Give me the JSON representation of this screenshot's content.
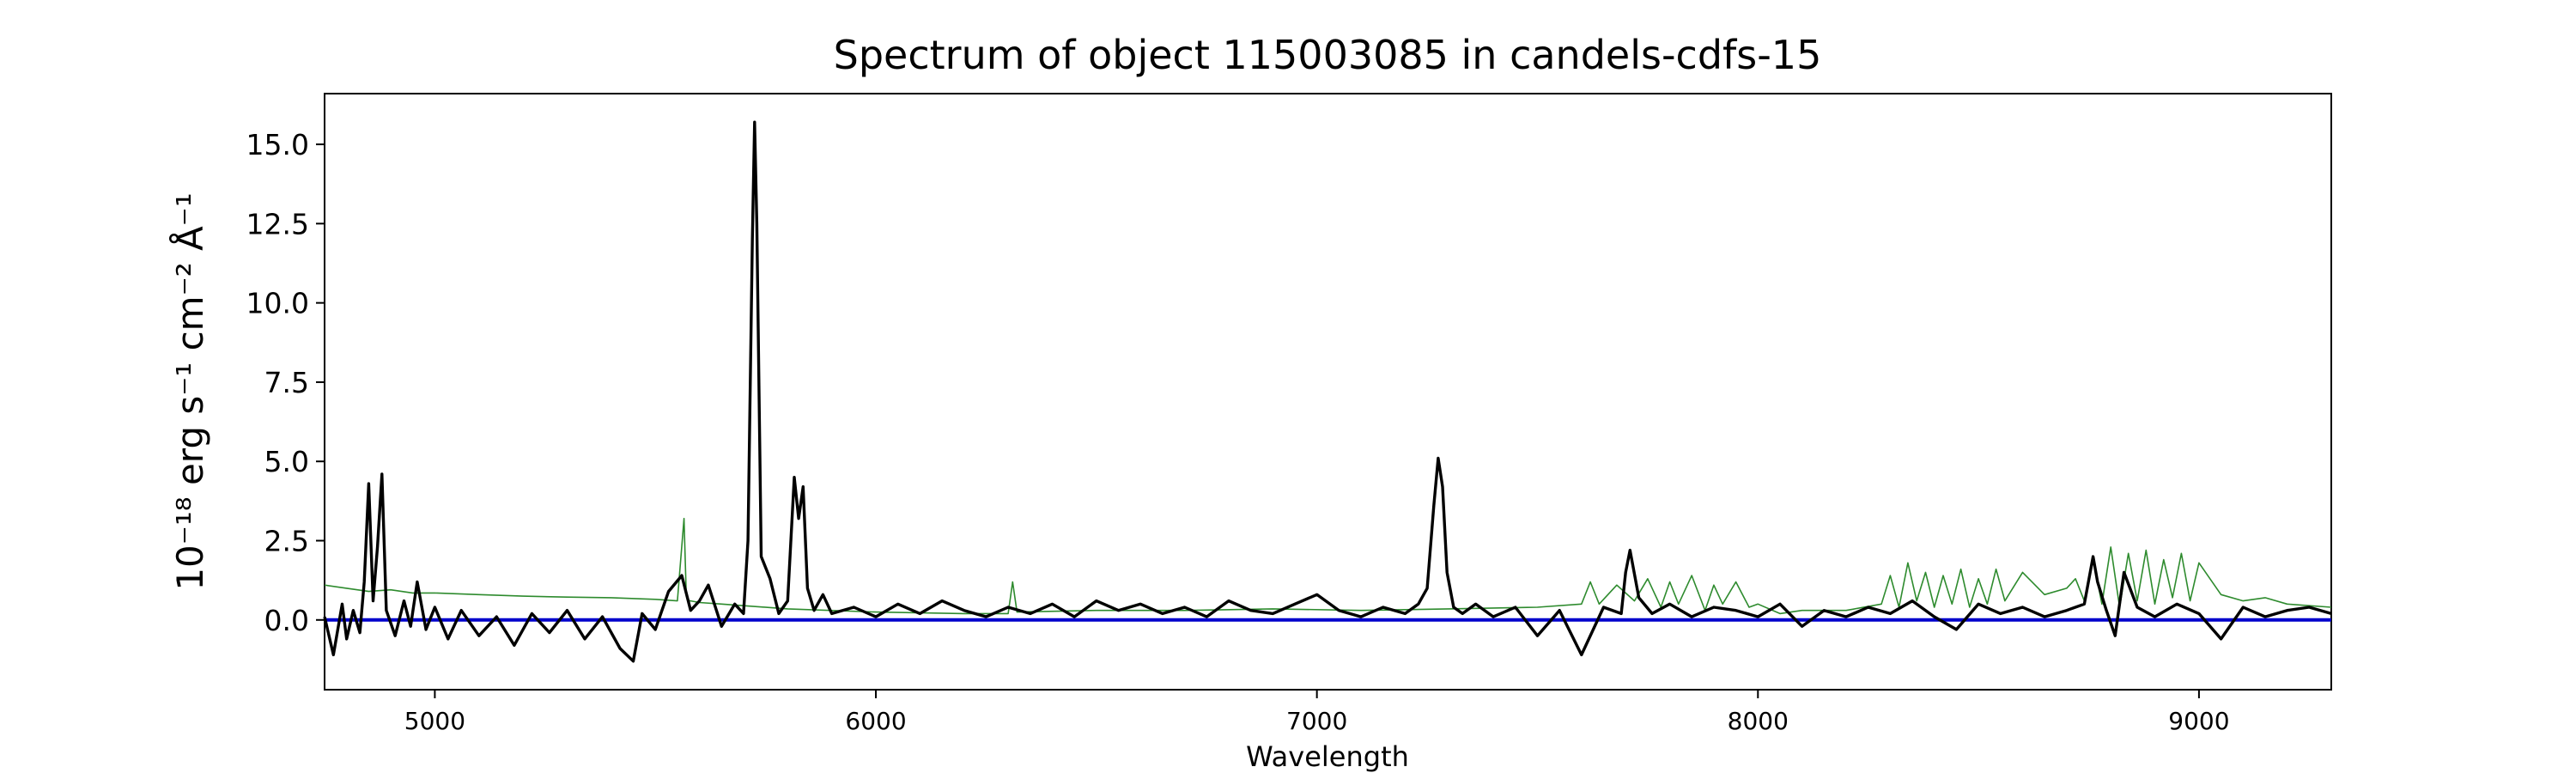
{
  "chart_data": {
    "type": "line",
    "title": "Spectrum of object 115003085 in candels-cdfs-15",
    "xlabel": "Wavelength",
    "ylabel": "10⁻¹⁸ erg s⁻¹ cm⁻² Å⁻¹",
    "xlim": [
      4750,
      9300
    ],
    "ylim": [
      -2.2,
      16.6
    ],
    "xticks": [
      5000,
      6000,
      7000,
      8000,
      9000
    ],
    "yticks": [
      0.0,
      2.5,
      5.0,
      7.5,
      10.0,
      12.5,
      15.0
    ],
    "ytick_labels": [
      "0.0",
      "2.5",
      "5.0",
      "7.5",
      "10.0",
      "12.5",
      "15.0"
    ],
    "colors": {
      "flux": "#000000",
      "error": "#2e8b2e",
      "zero": "#0000cc"
    },
    "series": [
      {
        "role": "flux",
        "x": [
          4750,
          4770,
          4790,
          4800,
          4815,
          4830,
          4840,
          4850,
          4860,
          4870,
          4880,
          4890,
          4910,
          4930,
          4945,
          4960,
          4980,
          5000,
          5030,
          5060,
          5100,
          5140,
          5180,
          5220,
          5260,
          5300,
          5340,
          5380,
          5420,
          5450,
          5470,
          5500,
          5530,
          5560,
          5580,
          5600,
          5620,
          5650,
          5680,
          5700,
          5710,
          5720,
          5725,
          5730,
          5740,
          5760,
          5780,
          5800,
          5815,
          5825,
          5835,
          5845,
          5860,
          5880,
          5900,
          5950,
          6000,
          6050,
          6100,
          6150,
          6200,
          6250,
          6300,
          6350,
          6400,
          6450,
          6500,
          6550,
          6600,
          6650,
          6700,
          6750,
          6800,
          6850,
          6900,
          6950,
          7000,
          7050,
          7100,
          7150,
          7200,
          7230,
          7250,
          7265,
          7275,
          7285,
          7295,
          7310,
          7330,
          7360,
          7400,
          7450,
          7500,
          7550,
          7600,
          7650,
          7690,
          7700,
          7710,
          7730,
          7760,
          7800,
          7850,
          7900,
          7950,
          8000,
          8050,
          8100,
          8150,
          8200,
          8250,
          8300,
          8350,
          8400,
          8450,
          8500,
          8550,
          8600,
          8650,
          8700,
          8740,
          8760,
          8770,
          8790,
          8810,
          8830,
          8860,
          8900,
          8950,
          9000,
          9050,
          9100,
          9150,
          9200,
          9250,
          9300
        ],
        "y": [
          0.1,
          -1.1,
          0.5,
          -0.6,
          0.3,
          -0.4,
          1.2,
          4.3,
          0.6,
          2.3,
          4.6,
          0.3,
          -0.5,
          0.6,
          -0.2,
          1.2,
          -0.3,
          0.4,
          -0.6,
          0.3,
          -0.5,
          0.1,
          -0.8,
          0.2,
          -0.4,
          0.3,
          -0.6,
          0.1,
          -0.9,
          -1.3,
          0.2,
          -0.3,
          0.9,
          1.4,
          0.3,
          0.6,
          1.1,
          -0.2,
          0.5,
          0.2,
          2.5,
          12.0,
          15.7,
          12.5,
          2.0,
          1.3,
          0.2,
          0.6,
          4.5,
          3.2,
          4.2,
          1.0,
          0.3,
          0.8,
          0.2,
          0.4,
          0.1,
          0.5,
          0.2,
          0.6,
          0.3,
          0.1,
          0.4,
          0.2,
          0.5,
          0.1,
          0.6,
          0.3,
          0.5,
          0.2,
          0.4,
          0.1,
          0.6,
          0.3,
          0.2,
          0.5,
          0.8,
          0.3,
          0.1,
          0.4,
          0.2,
          0.5,
          1.0,
          3.6,
          5.1,
          4.2,
          1.5,
          0.4,
          0.2,
          0.5,
          0.1,
          0.4,
          -0.5,
          0.3,
          -1.1,
          0.4,
          0.2,
          1.5,
          2.2,
          0.7,
          0.2,
          0.5,
          0.1,
          0.4,
          0.3,
          0.1,
          0.5,
          -0.2,
          0.3,
          0.1,
          0.4,
          0.2,
          0.6,
          0.1,
          -0.3,
          0.5,
          0.2,
          0.4,
          0.1,
          0.3,
          0.5,
          2.0,
          1.2,
          0.3,
          -0.5,
          1.5,
          0.4,
          0.1,
          0.5,
          0.2,
          -0.6,
          0.4,
          0.1,
          0.3,
          0.4,
          0.2
        ]
      },
      {
        "role": "error",
        "x": [
          4750,
          4800,
          4850,
          4900,
          4950,
          5000,
          5100,
          5200,
          5300,
          5400,
          5500,
          5550,
          5565,
          5570,
          5575,
          5580,
          5600,
          5650,
          5700,
          5800,
          6000,
          6200,
          6300,
          6310,
          6320,
          6500,
          6700,
          6900,
          7100,
          7300,
          7500,
          7600,
          7620,
          7640,
          7680,
          7720,
          7750,
          7780,
          7800,
          7820,
          7850,
          7880,
          7900,
          7920,
          7950,
          7980,
          8000,
          8050,
          8100,
          8200,
          8280,
          8300,
          8320,
          8340,
          8360,
          8380,
          8400,
          8420,
          8440,
          8460,
          8480,
          8500,
          8520,
          8540,
          8560,
          8600,
          8650,
          8700,
          8720,
          8740,
          8760,
          8780,
          8800,
          8820,
          8840,
          8860,
          8880,
          8900,
          8920,
          8940,
          8960,
          8980,
          9000,
          9050,
          9100,
          9150,
          9200,
          9300
        ],
        "y": [
          1.1,
          1.0,
          0.9,
          0.95,
          0.85,
          0.85,
          0.8,
          0.75,
          0.72,
          0.7,
          0.65,
          0.6,
          3.2,
          0.8,
          0.6,
          0.6,
          0.55,
          0.5,
          0.45,
          0.35,
          0.25,
          0.2,
          0.2,
          1.2,
          0.25,
          0.3,
          0.3,
          0.35,
          0.3,
          0.35,
          0.4,
          0.5,
          1.2,
          0.5,
          1.1,
          0.6,
          1.3,
          0.4,
          1.2,
          0.5,
          1.4,
          0.3,
          1.1,
          0.5,
          1.2,
          0.4,
          0.5,
          0.2,
          0.3,
          0.3,
          0.5,
          1.4,
          0.4,
          1.8,
          0.6,
          1.5,
          0.4,
          1.4,
          0.5,
          1.6,
          0.4,
          1.3,
          0.5,
          1.6,
          0.6,
          1.5,
          0.8,
          1.0,
          1.3,
          0.6,
          1.9,
          0.5,
          2.3,
          0.4,
          2.1,
          0.6,
          2.2,
          0.5,
          1.9,
          0.7,
          2.1,
          0.6,
          1.8,
          0.8,
          0.6,
          0.7,
          0.5,
          0.4
        ]
      },
      {
        "role": "zero",
        "x": [
          4750,
          9300
        ],
        "y": [
          0,
          0
        ]
      }
    ]
  }
}
